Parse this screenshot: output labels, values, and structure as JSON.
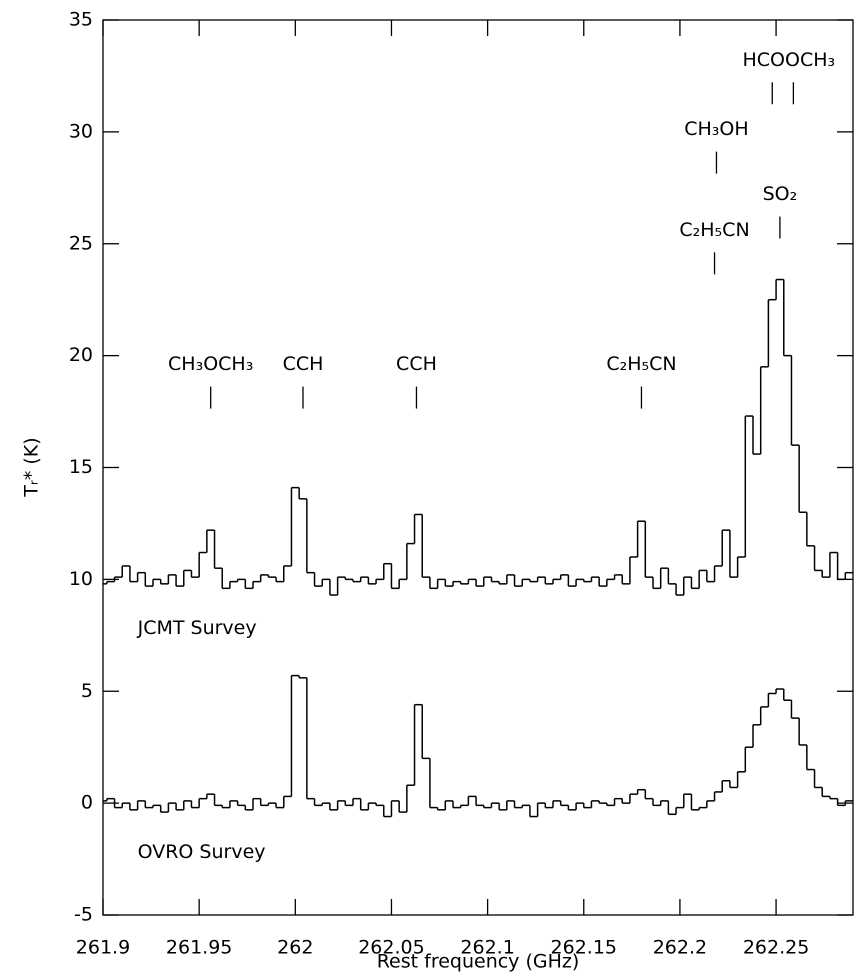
{
  "chart_data": {
    "type": "step",
    "xlabel": "Rest frequency (GHz)",
    "ylabel": "Tᵣ* (K)",
    "xlim": [
      261.9,
      262.29
    ],
    "ylim": [
      -5,
      35
    ],
    "xticks": [
      261.9,
      261.95,
      262,
      262.05,
      262.1,
      262.15,
      262.2,
      262.25
    ],
    "yticks": [
      -5,
      0,
      5,
      10,
      15,
      20,
      25,
      30,
      35
    ],
    "x": [
      261.9,
      261.904,
      261.908,
      261.912,
      261.916,
      261.92,
      261.924,
      261.928,
      261.932,
      261.936,
      261.94,
      261.944,
      261.948,
      261.952,
      261.956,
      261.96,
      261.964,
      261.968,
      261.972,
      261.976,
      261.98,
      261.984,
      261.988,
      261.992,
      261.996,
      262,
      262.004,
      262.008,
      262.012,
      262.016,
      262.02,
      262.024,
      262.028,
      262.032,
      262.036,
      262.04,
      262.044,
      262.048,
      262.052,
      262.056,
      262.06,
      262.064,
      262.068,
      262.072,
      262.076,
      262.08,
      262.084,
      262.088,
      262.092,
      262.096,
      262.1,
      262.104,
      262.108,
      262.112,
      262.116,
      262.12,
      262.124,
      262.128,
      262.132,
      262.136,
      262.14,
      262.144,
      262.148,
      262.152,
      262.156,
      262.16,
      262.164,
      262.168,
      262.172,
      262.176,
      262.18,
      262.184,
      262.188,
      262.192,
      262.196,
      262.2,
      262.204,
      262.208,
      262.212,
      262.216,
      262.22,
      262.224,
      262.228,
      262.232,
      262.236,
      262.24,
      262.244,
      262.248,
      262.252,
      262.256,
      262.26,
      262.264,
      262.268,
      262.272,
      262.276,
      262.28,
      262.284,
      262.288
    ],
    "series": [
      {
        "name": "JCMT Survey",
        "color": "#000000",
        "values": [
          9.8,
          9.9,
          10.1,
          10.6,
          9.9,
          10.3,
          9.7,
          10.0,
          9.8,
          10.2,
          9.7,
          10.4,
          10.1,
          11.2,
          12.2,
          10.5,
          9.6,
          9.9,
          10.0,
          9.6,
          9.9,
          10.2,
          10.1,
          9.9,
          10.6,
          14.1,
          13.6,
          10.3,
          9.7,
          10.0,
          9.3,
          10.1,
          10.0,
          9.9,
          10.1,
          9.8,
          10.0,
          10.7,
          9.6,
          10.0,
          11.6,
          12.9,
          10.1,
          9.6,
          10.0,
          9.7,
          9.9,
          9.8,
          10.0,
          9.7,
          10.1,
          9.9,
          9.8,
          10.2,
          9.7,
          10.0,
          9.9,
          10.1,
          9.8,
          10.0,
          10.2,
          9.7,
          10.0,
          9.9,
          10.1,
          9.7,
          10.0,
          10.2,
          9.8,
          11.0,
          12.6,
          10.1,
          9.6,
          10.5,
          9.8,
          9.3,
          10.1,
          9.6,
          10.4,
          9.9,
          10.6,
          12.2,
          10.1,
          11.0,
          17.3,
          15.6,
          19.5,
          22.5,
          23.4,
          20.0,
          16.0,
          13.0,
          11.5,
          10.4,
          10.1,
          11.2,
          10.0,
          10.3
        ]
      },
      {
        "name": "OVRO Survey",
        "color": "#000000",
        "values": [
          0.1,
          0.2,
          -0.2,
          0.0,
          -0.3,
          0.1,
          -0.2,
          -0.1,
          -0.4,
          0.0,
          -0.3,
          0.1,
          -0.2,
          0.2,
          0.4,
          -0.1,
          -0.2,
          0.1,
          -0.1,
          -0.3,
          0.2,
          -0.1,
          0.0,
          -0.2,
          0.3,
          5.7,
          5.6,
          0.2,
          -0.1,
          0.0,
          -0.3,
          0.1,
          -0.1,
          0.2,
          -0.3,
          0.0,
          -0.1,
          -0.6,
          0.1,
          -0.4,
          0.8,
          4.4,
          2.0,
          -0.2,
          -0.3,
          0.1,
          -0.2,
          -0.1,
          0.3,
          -0.1,
          -0.2,
          0.0,
          -0.3,
          0.1,
          -0.2,
          -0.1,
          -0.6,
          0.0,
          -0.2,
          0.1,
          -0.1,
          -0.3,
          0.0,
          -0.2,
          0.1,
          0.0,
          -0.1,
          0.2,
          0.0,
          0.4,
          0.6,
          0.2,
          -0.1,
          0.1,
          -0.5,
          -0.2,
          0.4,
          -0.3,
          -0.2,
          0.1,
          0.5,
          1.0,
          0.7,
          1.4,
          2.5,
          3.5,
          4.3,
          4.9,
          5.1,
          4.6,
          3.8,
          2.6,
          1.5,
          0.7,
          0.3,
          0.2,
          -0.1,
          0.1
        ]
      }
    ],
    "series_labels": [
      {
        "text": "JCMT Survey",
        "x": 261.918,
        "y": 7.8
      },
      {
        "text": "OVRO Survey",
        "x": 261.918,
        "y": -2.2
      }
    ],
    "annotations": [
      {
        "text": "CH₃OCH₃",
        "x": [
          261.956
        ],
        "y": 19.6
      },
      {
        "text": "CCH",
        "x": [
          262.004
        ],
        "y": 19.6
      },
      {
        "text": "CCH",
        "x": [
          262.063
        ],
        "y": 19.6
      },
      {
        "text": "C₂H₅CN",
        "x": [
          262.18
        ],
        "y": 19.6
      },
      {
        "text": "C₂H₅CN",
        "x": [
          262.218
        ],
        "y": 25.6
      },
      {
        "text": "CH₃OH",
        "x": [
          262.219
        ],
        "y": 30.1
      },
      {
        "text": "SO₂",
        "x": [
          262.252
        ],
        "y": 27.2
      },
      {
        "text": "HCOOCH₃",
        "x": [
          262.248,
          262.259
        ],
        "y": 33.2
      }
    ]
  }
}
